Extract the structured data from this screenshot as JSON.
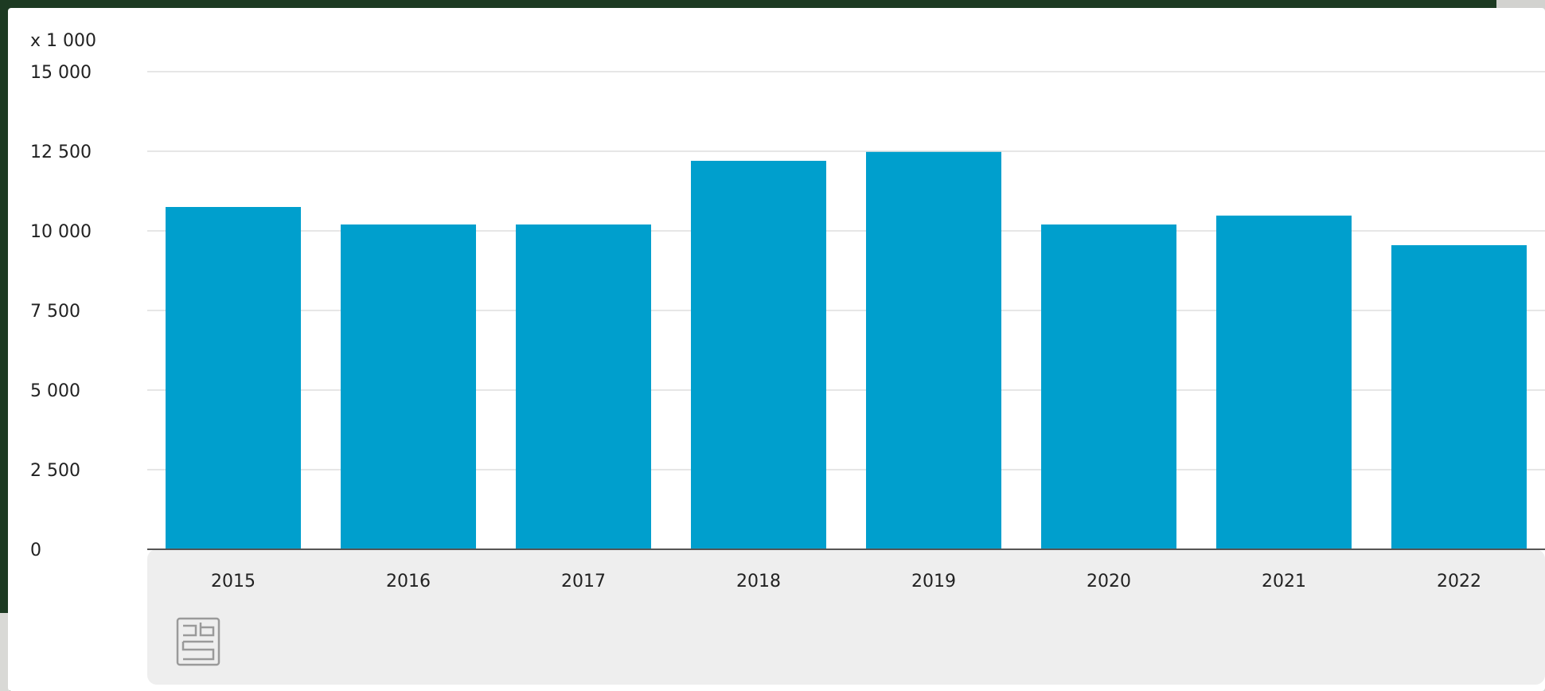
{
  "chart_data": {
    "type": "bar",
    "unit_label": "x 1 000",
    "categories": [
      "2015",
      "2016",
      "2017",
      "2018",
      "2019",
      "2020",
      "2021",
      "2022"
    ],
    "values": [
      10750,
      10200,
      10200,
      12200,
      12480,
      10200,
      10480,
      9550
    ],
    "yticks": [
      "0",
      "2 500",
      "5 000",
      "7 500",
      "10 000",
      "12 500",
      "15 000"
    ],
    "ytick_values": [
      0,
      2500,
      5000,
      7500,
      10000,
      12500,
      15000
    ],
    "ylim": [
      0,
      15000
    ],
    "grid": true,
    "colors": {
      "bar": "#009fcd",
      "footer_panel": "#eeeeee",
      "gridline": "#dddddd",
      "axis": "#555555"
    },
    "logo": "cbs-logo-icon"
  }
}
